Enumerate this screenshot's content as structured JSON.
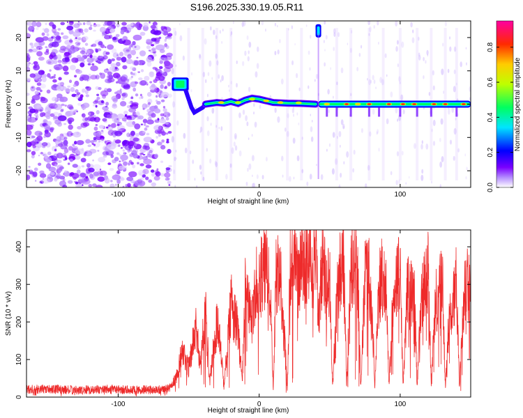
{
  "chart_data": [
    {
      "type": "heatmap",
      "title": "S196.2025.330.19.05.R11",
      "xlabel": "Height of straight line (km)",
      "ylabel": "Frequency (Hz)",
      "xlim": [
        -165,
        150
      ],
      "ylim": [
        -25,
        25
      ],
      "xticks": [
        -100,
        0,
        100
      ],
      "yticks": [
        -20,
        -10,
        0,
        10,
        20
      ],
      "colorbar": {
        "label": "Normalized spectral amplitude",
        "range": [
          0,
          0.95
        ],
        "ticks": [
          0.0,
          0.2,
          0.4,
          0.6,
          0.8
        ],
        "colors": [
          "#ffffff",
          "#7a00ff",
          "#0000ff",
          "#00e5ff",
          "#00ff00",
          "#ffff00",
          "#ff0000",
          "#ff00a0"
        ]
      },
      "features": [
        {
          "name": "broadband noise",
          "x_range": [
            -165,
            -63
          ],
          "f_range": [
            -25,
            25
          ]
        },
        {
          "name": "bright patch",
          "x_range": [
            -62,
            -50
          ],
          "f_range": [
            4,
            8
          ],
          "amplitude": 0.35
        },
        {
          "name": "tonal line",
          "x_range": [
            -45,
            150
          ],
          "frequency_hz_approx": 0,
          "peak_amplitude": 0.9
        },
        {
          "name": "transient",
          "x": 42,
          "f_range": [
            20,
            24
          ],
          "amplitude": 0.3
        }
      ]
    },
    {
      "type": "line",
      "title": "",
      "xlabel": "Height of straight line (km)",
      "ylabel": "SNR (10 * v/v)",
      "xlim": [
        -165,
        150
      ],
      "ylim": [
        0,
        445
      ],
      "xticks": [
        -100,
        0,
        100
      ],
      "yticks": [
        0,
        100,
        200,
        300,
        400
      ],
      "series": [
        {
          "name": "SNR",
          "color": "#ee2a2a",
          "x": [
            -165,
            -150,
            -130,
            -110,
            -90,
            -70,
            -63,
            -58,
            -55,
            -50,
            -45,
            -42,
            -38,
            -35,
            -30,
            -28,
            -25,
            -20,
            -15,
            -12,
            -10,
            -5,
            -2,
            0,
            5,
            8,
            10,
            12,
            15,
            18,
            20,
            22,
            25,
            28,
            30,
            32,
            35,
            38,
            40,
            42,
            45,
            47,
            50,
            52,
            55,
            57,
            60,
            62,
            65,
            67,
            70,
            72,
            75,
            77,
            80,
            82,
            85,
            87,
            90,
            92,
            95,
            98,
            100,
            102,
            105,
            108,
            110,
            112,
            115,
            118,
            120,
            122,
            125,
            128,
            130,
            132,
            135,
            138,
            140,
            142,
            145,
            147,
            150
          ],
          "y": [
            20,
            22,
            18,
            21,
            19,
            20,
            25,
            60,
            120,
            80,
            180,
            100,
            220,
            40,
            200,
            150,
            30,
            250,
            180,
            40,
            280,
            200,
            300,
            310,
            340,
            260,
            20,
            320,
            330,
            150,
            20,
            350,
            380,
            300,
            380,
            350,
            400,
            330,
            430,
            200,
            380,
            300,
            320,
            30,
            250,
            330,
            350,
            30,
            330,
            380,
            300,
            30,
            320,
            350,
            250,
            30,
            280,
            330,
            300,
            30,
            260,
            320,
            340,
            30,
            280,
            270,
            320,
            30,
            270,
            300,
            330,
            30,
            250,
            280,
            300,
            30,
            230,
            270,
            310,
            30,
            260,
            300,
            270
          ]
        }
      ]
    }
  ]
}
